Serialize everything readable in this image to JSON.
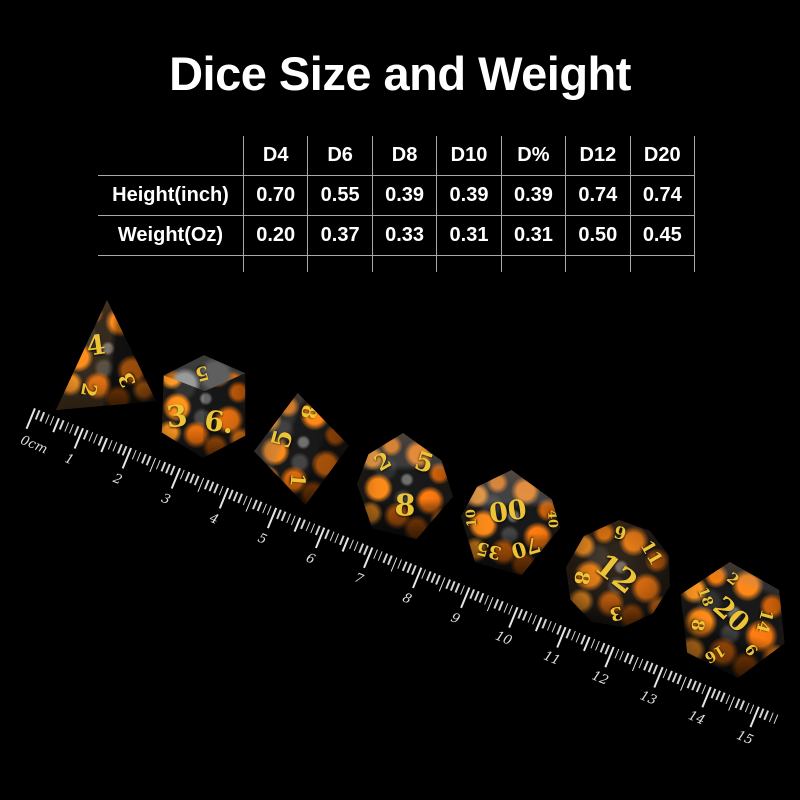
{
  "title": "Dice Size and Weight",
  "table": {
    "columns": [
      "D4",
      "D6",
      "D8",
      "D10",
      "D%",
      "D12",
      "D20"
    ],
    "rows": [
      {
        "label": "Height(inch)",
        "values": [
          "0.70",
          "0.55",
          "0.39",
          "0.39",
          "0.39",
          "0.74",
          "0.74"
        ]
      },
      {
        "label": "Weight(Oz)",
        "values": [
          "0.20",
          "0.37",
          "0.33",
          "0.31",
          "0.31",
          "0.50",
          "0.45"
        ]
      }
    ]
  },
  "chart_data": {
    "type": "table",
    "title": "Dice Size and Weight",
    "categories": [
      "D4",
      "D6",
      "D8",
      "D10",
      "D%",
      "D12",
      "D20"
    ],
    "series": [
      {
        "name": "Height(inch)",
        "values": [
          0.7,
          0.55,
          0.39,
          0.39,
          0.39,
          0.74,
          0.74
        ]
      },
      {
        "name": "Weight(Oz)",
        "values": [
          0.2,
          0.37,
          0.33,
          0.31,
          0.31,
          0.5,
          0.45
        ]
      }
    ]
  },
  "ruler": {
    "unit_label": "0cm",
    "marks": [
      "1",
      "2",
      "3",
      "4",
      "5",
      "6",
      "7",
      "8",
      "9",
      "10",
      "11",
      "12",
      "13",
      "14",
      "15"
    ]
  },
  "dice": [
    {
      "name": "D4",
      "shape": "tetrahedron",
      "numbers": [
        "4",
        "2",
        "3"
      ]
    },
    {
      "name": "D6",
      "shape": "cube",
      "numbers": [
        "5",
        "3",
        "6."
      ]
    },
    {
      "name": "D8",
      "shape": "octahedron",
      "numbers": [
        "8",
        "5",
        "1"
      ]
    },
    {
      "name": "D10",
      "shape": "pentagonal-trapezohedron",
      "numbers": [
        "2",
        "5",
        "8"
      ]
    },
    {
      "name": "D%",
      "shape": "pentagonal-trapezohedron",
      "numbers": [
        "00",
        "10",
        "40",
        "35",
        "70"
      ]
    },
    {
      "name": "D12",
      "shape": "dodecahedron",
      "numbers": [
        "9",
        "11",
        "12",
        "8",
        "3"
      ]
    },
    {
      "name": "D20",
      "shape": "icosahedron",
      "numbers": [
        "2",
        "18",
        "20",
        "8",
        "14",
        "16",
        "6"
      ]
    }
  ],
  "colors": {
    "background": "#000000",
    "text": "#ffffff",
    "grid_line": "#a9a9a9",
    "lava_orange": "#ff8c1a",
    "numeral_yellow": "#eec437",
    "die_base": "#191919",
    "ruler_tick": "#e6e6e6"
  }
}
